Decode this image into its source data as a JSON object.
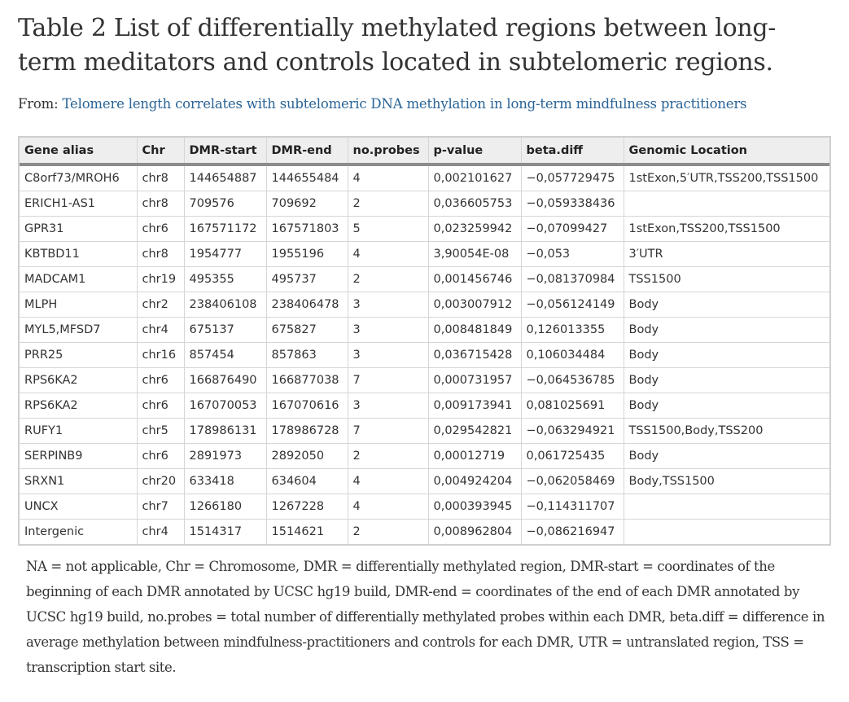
{
  "title": "Table 2 List of differentially methylated regions between long-term meditators and controls located in subtelomeric regions.",
  "from": {
    "label": "From:",
    "link_text": "Telomere length correlates with subtelomeric DNA methylation in long-term mindfulness practitioners"
  },
  "table": {
    "headers": [
      "Gene alias",
      "Chr",
      "DMR-start",
      "DMR-end",
      "no.probes",
      "p-value",
      "beta.diff",
      "Genomic Location"
    ],
    "rows": [
      [
        "C8orf73/MROH6",
        "chr8",
        "144654887",
        "144655484",
        "4",
        "0,002101627",
        "−0,057729475",
        "1stExon,5′UTR,TSS200,TSS1500"
      ],
      [
        "ERICH1-AS1",
        "chr8",
        "709576",
        "709692",
        "2",
        "0,036605753",
        "−0,059338436",
        ""
      ],
      [
        "GPR31",
        "chr6",
        "167571172",
        "167571803",
        "5",
        "0,023259942",
        "−0,07099427",
        "1stExon,TSS200,TSS1500"
      ],
      [
        "KBTBD11",
        "chr8",
        "1954777",
        "1955196",
        "4",
        "3,90054E-08",
        "−0,053",
        "3′UTR"
      ],
      [
        "MADCAM1",
        "chr19",
        "495355",
        "495737",
        "2",
        "0,001456746",
        "−0,081370984",
        "TSS1500"
      ],
      [
        "MLPH",
        "chr2",
        "238406108",
        "238406478",
        "3",
        "0,003007912",
        "−0,056124149",
        "Body"
      ],
      [
        "MYL5,MFSD7",
        "chr4",
        "675137",
        "675827",
        "3",
        "0,008481849",
        "0,126013355",
        "Body"
      ],
      [
        "PRR25",
        "chr16",
        "857454",
        "857863",
        "3",
        "0,036715428",
        "0,106034484",
        "Body"
      ],
      [
        "RPS6KA2",
        "chr6",
        "166876490",
        "166877038",
        "7",
        "0,000731957",
        "−0,064536785",
        "Body"
      ],
      [
        "RPS6KA2",
        "chr6",
        "167070053",
        "167070616",
        "3",
        "0,009173941",
        "0,081025691",
        "Body"
      ],
      [
        "RUFY1",
        "chr5",
        "178986131",
        "178986728",
        "7",
        "0,029542821",
        "−0,063294921",
        "TSS1500,Body,TSS200"
      ],
      [
        "SERPINB9",
        "chr6",
        "2891973",
        "2892050",
        "2",
        "0,00012719",
        "0,061725435",
        "Body"
      ],
      [
        "SRXN1",
        "chr20",
        "633418",
        "634604",
        "4",
        "0,004924204",
        "−0,062058469",
        "Body,TSS1500"
      ],
      [
        "UNCX",
        "chr7",
        "1266180",
        "1267228",
        "4",
        "0,000393945",
        "−0,114311707",
        ""
      ],
      [
        "Intergenic",
        "chr4",
        "1514317",
        "1514621",
        "2",
        "0,008962804",
        "−0,086216947",
        ""
      ]
    ]
  },
  "footnote": "NA = not applicable, Chr = Chromosome, DMR = differentially methylated region, DMR-start = coordinates of the beginning of each DMR annotated by UCSC hg19 build, DMR-end = coordinates of the end of each DMR annotated by UCSC hg19 build, no.probes = total number of differentially methylated probes within each DMR, beta.diff = difference in average methylation between mindfulness-practitioners and controls for each DMR, UTR = untranslated region, TSS = transcription start site.",
  "colors": {
    "link": "#2a6496",
    "header_bg": "#eeeeee"
  }
}
